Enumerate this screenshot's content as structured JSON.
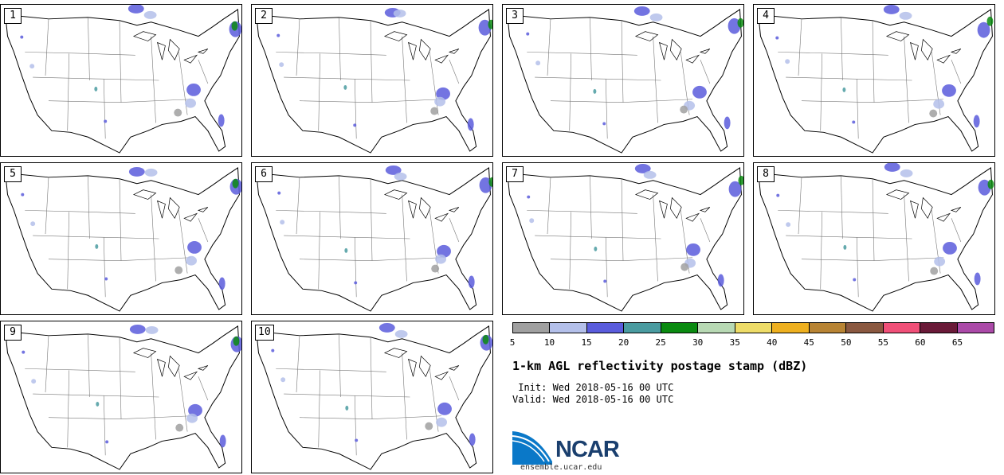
{
  "panels": [
    "1",
    "2",
    "3",
    "4",
    "5",
    "6",
    "7",
    "8",
    "9",
    "10"
  ],
  "colorbar": {
    "colors": [
      "#a0a0a0",
      "#b4c0ea",
      "#5a5cdc",
      "#4a9ba0",
      "#0a8a10",
      "#b8d9b4",
      "#eedc68",
      "#eeb020",
      "#b88434",
      "#8a5840",
      "#f05078",
      "#6a1a38",
      "#ab4aa8"
    ],
    "ticks": [
      "5",
      "10",
      "15",
      "20",
      "25",
      "30",
      "35",
      "40",
      "45",
      "50",
      "55",
      "60",
      "65"
    ]
  },
  "title": "1-km AGL reflectivity postage stamp (dBZ)",
  "init": " Init: Wed 2018-05-16 00 UTC",
  "valid": "Valid: Wed 2018-05-16 00 UTC",
  "logo": {
    "name": "NCAR",
    "url": "ensemble.ucar.edu",
    "blue": "#0a78c8"
  }
}
